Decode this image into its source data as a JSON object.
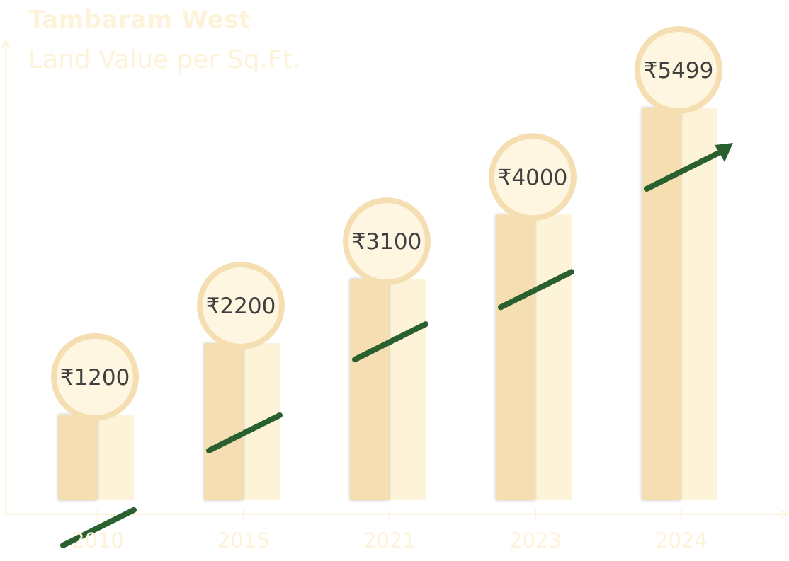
{
  "chart_data": {
    "type": "bar",
    "title": "Tambaram West",
    "subtitle": "Land Value per Sq.Ft.",
    "categories": [
      "2010",
      "2015",
      "2021",
      "2023",
      "2024"
    ],
    "values": [
      1200,
      2200,
      3100,
      4000,
      5499
    ],
    "value_labels": [
      "₹1200",
      "₹2200",
      "₹3100",
      "₹4000",
      "₹5499"
    ],
    "xlabel": "",
    "ylabel": "",
    "ylim": [
      0,
      6000
    ],
    "grid": false,
    "legend": "none"
  },
  "colors": {
    "bar_dark": "#f5dfb2",
    "bar_light": "#fdf3d8",
    "bubble_ring": "#f5dfb2",
    "bubble_fill": "#fef6e0",
    "value_text": "#3f3f3f",
    "trend_arrow": "#2a6030",
    "axis": "#fdf3d8",
    "axis_text": "#fdf3d8",
    "title_text": "#fdf3d8"
  }
}
